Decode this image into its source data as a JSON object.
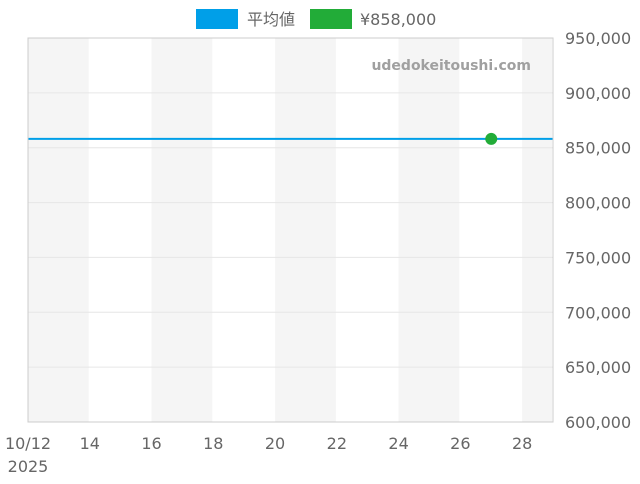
{
  "chart_data": {
    "type": "line",
    "title": "",
    "xlabel": "",
    "ylabel": "",
    "x_range": [
      "2025-10-12",
      "2025-10-29"
    ],
    "x_ticks": [
      "10/12",
      "14",
      "16",
      "18",
      "20",
      "22",
      "24",
      "26",
      "28"
    ],
    "x_tick_days": [
      12,
      14,
      16,
      18,
      20,
      22,
      24,
      26,
      28
    ],
    "x_year_label": "2025",
    "ylim": [
      600000,
      950000
    ],
    "y_ticks": [
      "600,000",
      "650,000",
      "700,000",
      "750,000",
      "800,000",
      "850,000",
      "900,000",
      "950,000"
    ],
    "y_tick_values": [
      600000,
      650000,
      700000,
      750000,
      800000,
      850000,
      900000,
      950000
    ],
    "grid": true,
    "legend_position": "top",
    "watermark": "udedokeitoushi.com",
    "series": [
      {
        "name": "平均値",
        "kind": "line",
        "color": "#009fe8",
        "x": [
          "2025-10-12",
          "2025-10-29"
        ],
        "values": [
          858000,
          858000
        ]
      },
      {
        "name": "¥858,000",
        "kind": "point",
        "color": "#22ac38",
        "x": [
          "2025-10-27"
        ],
        "values": [
          858000
        ]
      }
    ]
  }
}
